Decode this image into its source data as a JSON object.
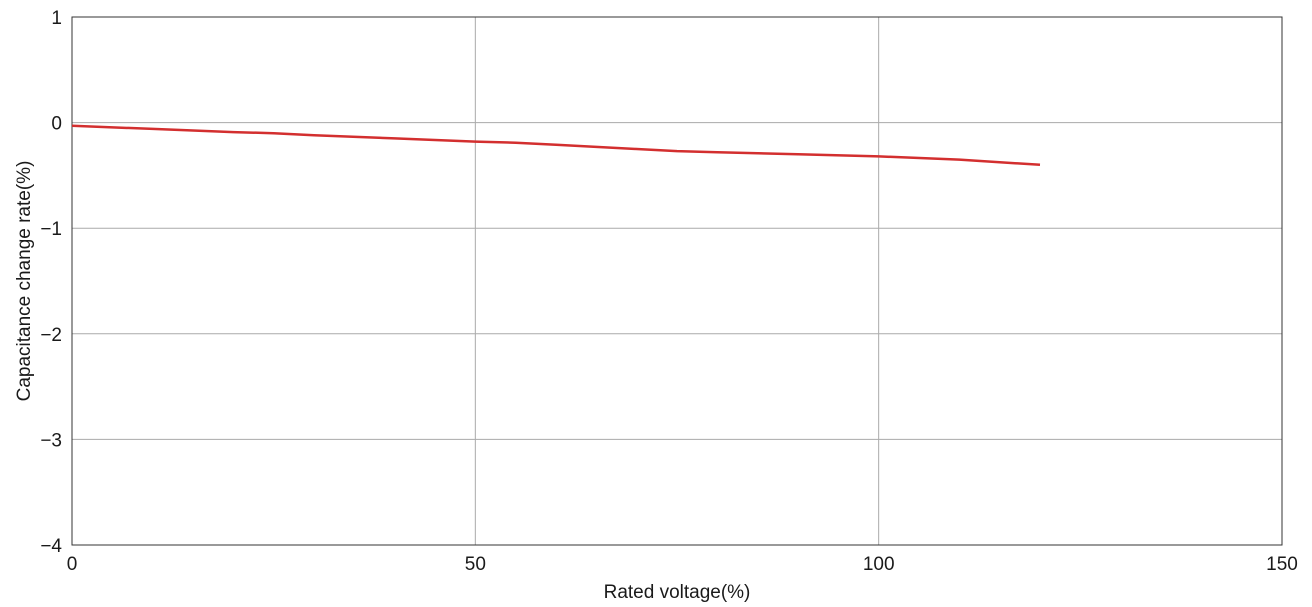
{
  "chart_data": {
    "type": "line",
    "xlabel": "Rated voltage(%)",
    "ylabel": "Capacitance change rate(%)",
    "xlim": [
      0,
      150
    ],
    "ylim": [
      -4,
      1
    ],
    "x_ticks": [
      "0",
      "50",
      "100",
      "150"
    ],
    "y_ticks": [
      "1",
      "0",
      "−1",
      "−2",
      "−3",
      "−4"
    ],
    "grid": true,
    "series": [
      {
        "color": "#d32f2f",
        "x": [
          0,
          10,
          20,
          25,
          30,
          40,
          50,
          55,
          60,
          70,
          75,
          80,
          90,
          100,
          110,
          120
        ],
        "y": [
          -0.03,
          -0.06,
          -0.09,
          -0.1,
          -0.12,
          -0.15,
          -0.18,
          -0.19,
          -0.21,
          -0.25,
          -0.27,
          -0.28,
          -0.3,
          -0.32,
          -0.35,
          -0.4
        ]
      }
    ]
  }
}
